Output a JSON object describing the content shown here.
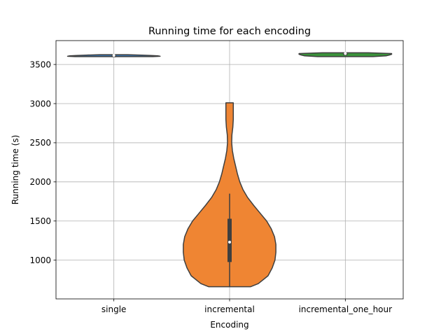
{
  "chart_data": {
    "type": "violin",
    "title": "Running time for each encoding",
    "xlabel": "Encoding",
    "ylabel": "Running time (s)",
    "ylim": [
      505,
      3805
    ],
    "yticks": [
      1000,
      1500,
      2000,
      2500,
      3000,
      3500
    ],
    "grid": true,
    "legend": "none",
    "categories": [
      "single",
      "incremental",
      "incremental_one_hour"
    ],
    "violins": [
      {
        "category": "single",
        "color": "#3a75ae",
        "min": 3600,
        "max": 3625,
        "q1": 3610,
        "median": 3615,
        "q3": 3620,
        "whisker_low": 3605,
        "whisker_high": 3622,
        "density": [
          [
            3600,
            0.84
          ],
          [
            3605,
            1.0
          ],
          [
            3610,
            0.95
          ],
          [
            3615,
            0.8
          ],
          [
            3620,
            0.6
          ],
          [
            3625,
            0.3
          ]
        ]
      },
      {
        "category": "incremental",
        "color": "#ef8533",
        "min": 660,
        "max": 3010,
        "q1": 985,
        "median": 1230,
        "q3": 1520,
        "whisker_low": 660,
        "whisker_high": 1850,
        "density": [
          [
            660,
            0.45
          ],
          [
            700,
            0.62
          ],
          [
            800,
            0.83
          ],
          [
            900,
            0.92
          ],
          [
            1000,
            0.98
          ],
          [
            1100,
            1.0
          ],
          [
            1200,
            1.0
          ],
          [
            1300,
            0.97
          ],
          [
            1400,
            0.9
          ],
          [
            1500,
            0.8
          ],
          [
            1600,
            0.66
          ],
          [
            1700,
            0.52
          ],
          [
            1800,
            0.39
          ],
          [
            1900,
            0.29
          ],
          [
            2000,
            0.22
          ],
          [
            2100,
            0.17
          ],
          [
            2200,
            0.13
          ],
          [
            2300,
            0.09
          ],
          [
            2400,
            0.06
          ],
          [
            2500,
            0.045
          ],
          [
            2600,
            0.05
          ],
          [
            2700,
            0.07
          ],
          [
            2800,
            0.08
          ],
          [
            2900,
            0.08
          ],
          [
            3000,
            0.08
          ],
          [
            3010,
            0.08
          ]
        ]
      },
      {
        "category": "incremental_one_hour",
        "color": "#3b923b",
        "min": 3600,
        "max": 3650,
        "q1": 3630,
        "median": 3640,
        "q3": 3645,
        "whisker_low": 3615,
        "whisker_high": 3650,
        "density": [
          [
            3600,
            0.6
          ],
          [
            3610,
            0.88
          ],
          [
            3620,
            0.95
          ],
          [
            3630,
            1.0
          ],
          [
            3640,
            1.0
          ],
          [
            3650,
            0.5
          ]
        ]
      }
    ]
  }
}
